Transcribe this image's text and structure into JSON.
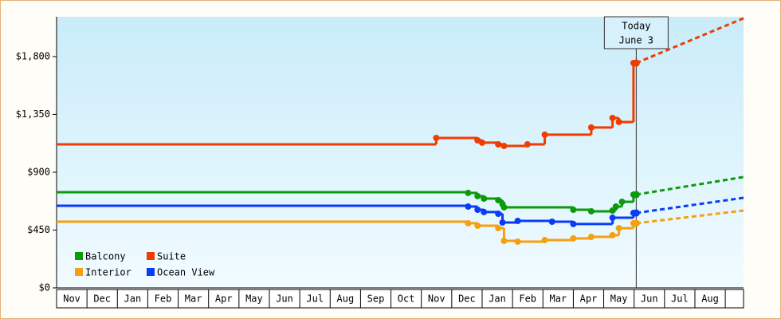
{
  "chart_data": {
    "type": "step-line",
    "months": [
      "Nov",
      "Dec",
      "Jan",
      "Feb",
      "Mar",
      "Apr",
      "May",
      "Jun",
      "Jul",
      "Aug",
      "Sep",
      "Oct",
      "Nov",
      "Dec",
      "Jan",
      "Feb",
      "Mar",
      "Apr",
      "May",
      "Jun",
      "Jul",
      "Aug"
    ],
    "xlim": [
      0,
      22.6
    ],
    "ylim": [
      0,
      2110
    ],
    "yticks": [
      {
        "value": 0,
        "label": "$0"
      },
      {
        "value": 450,
        "label": "$450"
      },
      {
        "value": 900,
        "label": "$900"
      },
      {
        "value": 1350,
        "label": "$1,350"
      },
      {
        "value": 1800,
        "label": "$1,800"
      }
    ],
    "today": {
      "x": 19.07,
      "label": [
        "Today",
        "June 3"
      ]
    },
    "legend": "bottom-left",
    "series": [
      {
        "name": "Balcony",
        "color": "#0a9a0a",
        "x": [
          0,
          13.54,
          13.85,
          14.06,
          14.53,
          14.67,
          14.72,
          17.0,
          17.59,
          18.29,
          18.4,
          18.6,
          18.98
        ],
        "values": [
          745,
          739,
          714,
          695,
          683,
          652,
          627,
          608,
          596,
          602,
          633,
          670,
          726
        ],
        "forecast": {
          "x": [
            19.07,
            22.6
          ],
          "values": [
            726,
            863
          ]
        }
      },
      {
        "name": "Suite",
        "color": "#f03c00",
        "x": [
          0,
          12.49,
          13.85,
          14.0,
          14.53,
          14.72,
          15.49,
          16.06,
          17.59,
          18.29,
          18.5,
          18.98
        ],
        "values": [
          1117,
          1167,
          1148,
          1130,
          1117,
          1105,
          1117,
          1192,
          1248,
          1322,
          1291,
          1750
        ],
        "forecast": {
          "x": [
            19.07,
            22.6
          ],
          "values": [
            1750,
            2098
          ]
        }
      },
      {
        "name": "Interior",
        "color": "#f5a010",
        "x": [
          0,
          13.54,
          13.85,
          14.53,
          14.72,
          15.17,
          16.06,
          17.0,
          17.59,
          18.29,
          18.5,
          18.98
        ],
        "values": [
          515,
          503,
          484,
          465,
          366,
          360,
          372,
          385,
          397,
          410,
          465,
          503
        ],
        "forecast": {
          "x": [
            19.07,
            22.6
          ],
          "values": [
            503,
            602
          ]
        }
      },
      {
        "name": "Ocean View",
        "color": "#0a3cf5",
        "x": [
          0,
          13.54,
          13.85,
          14.06,
          14.53,
          14.67,
          15.17,
          16.3,
          17.0,
          18.29,
          18.98
        ],
        "values": [
          639,
          633,
          608,
          590,
          577,
          509,
          521,
          515,
          497,
          546,
          583
        ],
        "forecast": {
          "x": [
            19.07,
            22.6
          ],
          "values": [
            583,
            701
          ]
        }
      }
    ]
  }
}
